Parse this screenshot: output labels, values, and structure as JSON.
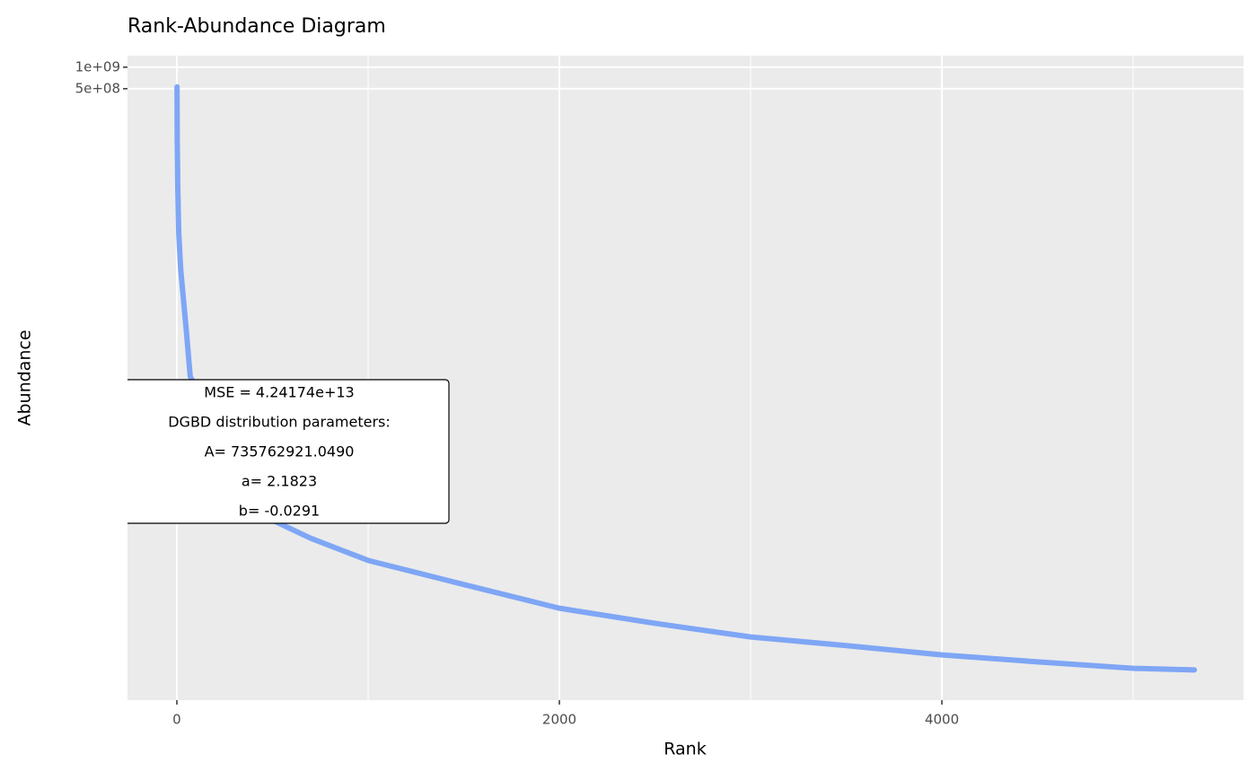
{
  "chart_data": {
    "type": "line",
    "title": "Rank-Abundance Diagram",
    "x_label": "Rank",
    "y_label": "Abundance",
    "xlim": [
      -258,
      5577
    ],
    "xticks": [
      0,
      2000,
      4000
    ],
    "ylim": [
      1.4,
      1450000000
    ],
    "yticks": [
      {
        "value": 500000000,
        "label": "5e+08"
      },
      {
        "value": 1000000000,
        "label": "1e+09"
      }
    ],
    "log_y": true,
    "grid": true,
    "x": [
      1,
      2,
      5,
      10,
      20,
      50,
      70,
      500,
      700,
      1000,
      1500,
      2000,
      2500,
      3000,
      3500,
      4000,
      4500,
      5000,
      5320
    ],
    "series": [
      {
        "color": "#ef8a6e",
        "values": [
          530000000,
          99000000,
          20200000,
          4770000,
          1500000,
          200000,
          47000,
          460,
          257,
          126,
          58,
          27,
          16.6,
          10.7,
          8.1,
          6.0,
          4.8,
          3.9,
          3.7
        ]
      },
      {
        "color": "#7fa6f5",
        "values": [
          530000000,
          99000000,
          20200000,
          4770000,
          1500000,
          200000,
          47000,
          460,
          257,
          126,
          58,
          27,
          16.6,
          10.7,
          8.1,
          6.0,
          4.8,
          3.9,
          3.7
        ]
      }
    ],
    "annotation": [
      "MSE = 4.24174e+13",
      "DGBD distribution parameters:",
      "A= 735762921.0490",
      "a= 2.1823",
      "b= -0.0291"
    ]
  }
}
